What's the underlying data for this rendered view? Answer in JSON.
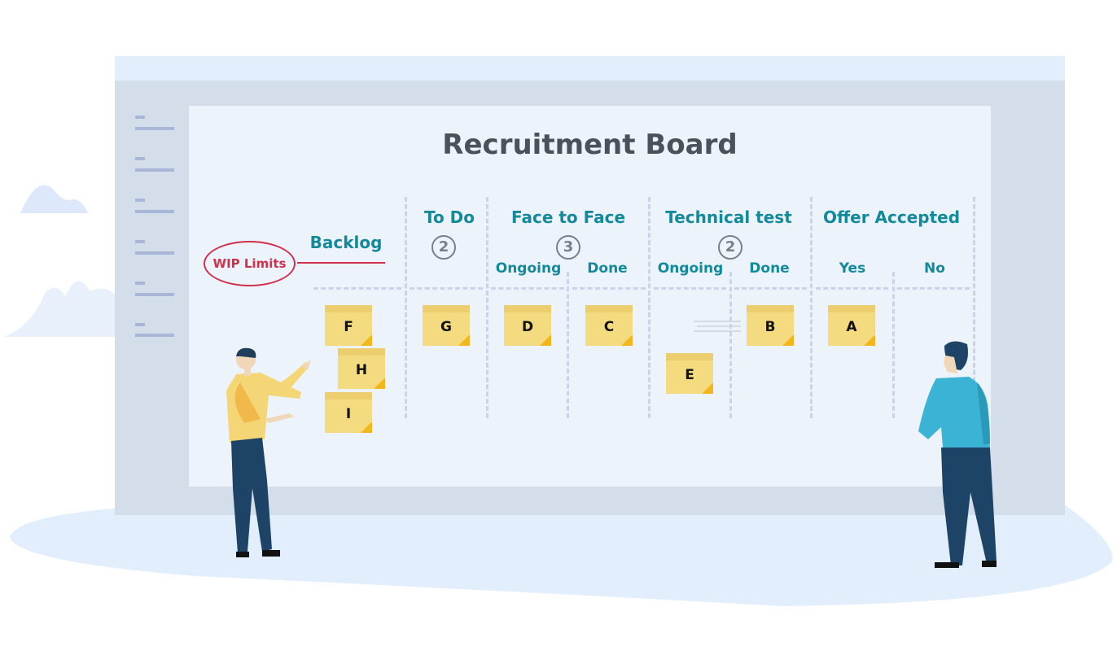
{
  "title": "Recruitment Board",
  "wip_label": "WIP Limits",
  "columns": [
    {
      "name": "Backlog"
    },
    {
      "name": "To Do",
      "wip": "2"
    },
    {
      "name": "Face to Face",
      "wip": "3",
      "sub": [
        "Ongoing",
        "Done"
      ]
    },
    {
      "name": "Technical test",
      "wip": "2",
      "sub": [
        "Ongoing",
        "Done"
      ]
    },
    {
      "name": "Offer Accepted",
      "sub": [
        "Yes",
        "No"
      ]
    }
  ],
  "cards": {
    "backlog": [
      "F",
      "H",
      "I"
    ],
    "todo": [
      "G"
    ],
    "f2f_ongoing": [
      "D"
    ],
    "f2f_done": [
      "C"
    ],
    "tech_ongoing": [
      "E"
    ],
    "tech_done": [
      "B"
    ],
    "offer_yes": [
      "A"
    ]
  },
  "colors": {
    "header": "#138a9c",
    "wip_accent": "#d0304a",
    "note": "#f5db7f",
    "board": "#edf3fb"
  }
}
